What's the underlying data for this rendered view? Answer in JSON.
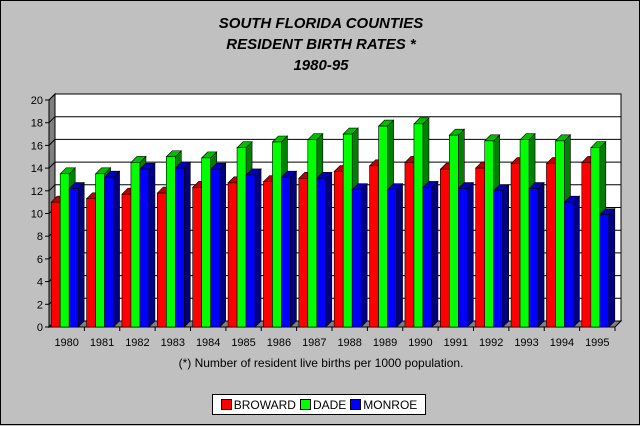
{
  "chart_data": {
    "type": "bar",
    "title": "SOUTH FLORIDA COUNTIES",
    "subtitle": "RESIDENT BIRTH RATES *",
    "period": "1980-95",
    "footnote": "(*) Number of resident live births per 1000 population.",
    "categories": [
      "1980",
      "1981",
      "1982",
      "1983",
      "1984",
      "1985",
      "1986",
      "1987",
      "1988",
      "1989",
      "1990",
      "1991",
      "1992",
      "1993",
      "1994",
      "1995"
    ],
    "ylim": [
      0,
      20
    ],
    "yticks": [
      "0",
      "2",
      "4",
      "6",
      "8",
      "10",
      "12",
      "14",
      "16",
      "18",
      "20"
    ],
    "grid": true,
    "legend": "bottom",
    "series": [
      {
        "name": "BROWARD",
        "color": "#ff0000",
        "values": [
          11.0,
          11.3,
          11.7,
          11.8,
          12.3,
          12.7,
          12.8,
          13.1,
          13.7,
          14.2,
          14.5,
          13.9,
          14.0,
          14.4,
          14.4,
          14.5
        ]
      },
      {
        "name": "DADE",
        "color": "#00ff00",
        "values": [
          13.5,
          13.5,
          14.5,
          15.0,
          14.9,
          15.8,
          16.3,
          16.5,
          17.0,
          17.7,
          17.9,
          16.9,
          16.4,
          16.5,
          16.4,
          15.8
        ]
      },
      {
        "name": "MONROE",
        "color": "#0000ff",
        "values": [
          12.2,
          13.2,
          13.9,
          14.0,
          13.9,
          13.4,
          13.2,
          13.1,
          12.1,
          12.1,
          12.3,
          12.2,
          12.0,
          12.2,
          11.0,
          9.9
        ]
      }
    ]
  }
}
